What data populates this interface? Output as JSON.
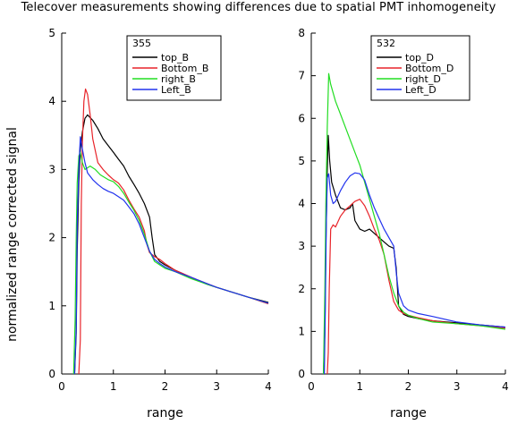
{
  "figure_title": "Telecover measurements showing differences due to spatial PMT inhomogeneity",
  "ylabel": "normalized range corrected signal",
  "chart_data": [
    {
      "type": "line",
      "panel": "left",
      "legend_title": "355",
      "legend_position": "top-right",
      "xlabel": "range",
      "xlim": [
        0,
        4
      ],
      "ylim": [
        0,
        5
      ],
      "xticks": [
        0,
        1,
        2,
        3,
        4
      ],
      "yticks": [
        0,
        1,
        2,
        3,
        4,
        5
      ],
      "grid": false,
      "series": [
        {
          "name": "top_B",
          "color": "#000000",
          "points": [
            [
              0.25,
              0
            ],
            [
              0.28,
              0.6
            ],
            [
              0.3,
              1.8
            ],
            [
              0.33,
              2.8
            ],
            [
              0.36,
              3.3
            ],
            [
              0.4,
              3.55
            ],
            [
              0.45,
              3.75
            ],
            [
              0.5,
              3.8
            ],
            [
              0.6,
              3.72
            ],
            [
              0.7,
              3.6
            ],
            [
              0.8,
              3.45
            ],
            [
              0.9,
              3.35
            ],
            [
              1.0,
              3.25
            ],
            [
              1.1,
              3.15
            ],
            [
              1.2,
              3.05
            ],
            [
              1.3,
              2.9
            ],
            [
              1.4,
              2.78
            ],
            [
              1.5,
              2.65
            ],
            [
              1.6,
              2.5
            ],
            [
              1.7,
              2.3
            ],
            [
              1.75,
              2.0
            ],
            [
              1.8,
              1.75
            ],
            [
              1.9,
              1.65
            ],
            [
              2.0,
              1.6
            ],
            [
              2.2,
              1.52
            ],
            [
              2.5,
              1.42
            ],
            [
              2.8,
              1.32
            ],
            [
              3.0,
              1.27
            ],
            [
              3.3,
              1.2
            ],
            [
              3.6,
              1.13
            ],
            [
              4.0,
              1.05
            ]
          ]
        },
        {
          "name": "Bottom_B",
          "color": "#e8242a",
          "points": [
            [
              0.33,
              0
            ],
            [
              0.36,
              0.5
            ],
            [
              0.38,
              2.5
            ],
            [
              0.4,
              3.4
            ],
            [
              0.43,
              4.0
            ],
            [
              0.46,
              4.18
            ],
            [
              0.5,
              4.1
            ],
            [
              0.55,
              3.8
            ],
            [
              0.6,
              3.45
            ],
            [
              0.7,
              3.1
            ],
            [
              0.8,
              3.0
            ],
            [
              0.9,
              2.92
            ],
            [
              1.0,
              2.85
            ],
            [
              1.1,
              2.8
            ],
            [
              1.2,
              2.7
            ],
            [
              1.3,
              2.55
            ],
            [
              1.4,
              2.42
            ],
            [
              1.5,
              2.3
            ],
            [
              1.6,
              2.1
            ],
            [
              1.65,
              1.9
            ],
            [
              1.7,
              1.78
            ],
            [
              1.8,
              1.72
            ],
            [
              1.9,
              1.68
            ],
            [
              2.0,
              1.62
            ],
            [
              2.2,
              1.52
            ],
            [
              2.5,
              1.42
            ],
            [
              2.8,
              1.33
            ],
            [
              3.0,
              1.27
            ],
            [
              3.3,
              1.2
            ],
            [
              3.6,
              1.13
            ],
            [
              4.0,
              1.03
            ]
          ]
        },
        {
          "name": "right_B",
          "color": "#22dd22",
          "points": [
            [
              0.23,
              0
            ],
            [
              0.26,
              0.8
            ],
            [
              0.28,
              2.0
            ],
            [
              0.3,
              2.8
            ],
            [
              0.33,
              3.2
            ],
            [
              0.36,
              3.25
            ],
            [
              0.4,
              3.1
            ],
            [
              0.45,
              3.0
            ],
            [
              0.55,
              3.05
            ],
            [
              0.65,
              3.0
            ],
            [
              0.75,
              2.92
            ],
            [
              0.9,
              2.85
            ],
            [
              1.0,
              2.82
            ],
            [
              1.1,
              2.75
            ],
            [
              1.2,
              2.65
            ],
            [
              1.3,
              2.52
            ],
            [
              1.4,
              2.4
            ],
            [
              1.5,
              2.25
            ],
            [
              1.6,
              2.05
            ],
            [
              1.7,
              1.8
            ],
            [
              1.8,
              1.65
            ],
            [
              1.9,
              1.6
            ],
            [
              2.0,
              1.55
            ],
            [
              2.2,
              1.5
            ],
            [
              2.5,
              1.4
            ],
            [
              2.8,
              1.32
            ],
            [
              3.0,
              1.27
            ],
            [
              3.3,
              1.2
            ],
            [
              3.6,
              1.13
            ],
            [
              4.0,
              1.04
            ]
          ]
        },
        {
          "name": "Left_B",
          "color": "#2233ee",
          "points": [
            [
              0.25,
              0
            ],
            [
              0.28,
              0.7
            ],
            [
              0.3,
              2.2
            ],
            [
              0.33,
              3.0
            ],
            [
              0.36,
              3.48
            ],
            [
              0.4,
              3.3
            ],
            [
              0.45,
              3.1
            ],
            [
              0.5,
              2.95
            ],
            [
              0.6,
              2.85
            ],
            [
              0.7,
              2.78
            ],
            [
              0.8,
              2.72
            ],
            [
              0.9,
              2.68
            ],
            [
              1.0,
              2.65
            ],
            [
              1.1,
              2.6
            ],
            [
              1.2,
              2.55
            ],
            [
              1.3,
              2.45
            ],
            [
              1.4,
              2.35
            ],
            [
              1.5,
              2.2
            ],
            [
              1.6,
              2.0
            ],
            [
              1.7,
              1.8
            ],
            [
              1.8,
              1.68
            ],
            [
              1.9,
              1.62
            ],
            [
              2.0,
              1.57
            ],
            [
              2.2,
              1.5
            ],
            [
              2.5,
              1.42
            ],
            [
              2.8,
              1.33
            ],
            [
              3.0,
              1.27
            ],
            [
              3.3,
              1.2
            ],
            [
              3.6,
              1.13
            ],
            [
              4.0,
              1.04
            ]
          ]
        }
      ]
    },
    {
      "type": "line",
      "panel": "right",
      "legend_title": "532",
      "legend_position": "top-right",
      "xlabel": "range",
      "xlim": [
        0,
        4
      ],
      "ylim": [
        0,
        8
      ],
      "xticks": [
        0,
        1,
        2,
        3,
        4
      ],
      "yticks": [
        0,
        1,
        2,
        3,
        4,
        5,
        6,
        7,
        8
      ],
      "grid": false,
      "series": [
        {
          "name": "top_D",
          "color": "#000000",
          "points": [
            [
              0.25,
              0
            ],
            [
              0.28,
              1.0
            ],
            [
              0.3,
              3.0
            ],
            [
              0.33,
              4.8
            ],
            [
              0.35,
              5.6
            ],
            [
              0.38,
              5.0
            ],
            [
              0.42,
              4.5
            ],
            [
              0.5,
              4.2
            ],
            [
              0.6,
              3.9
            ],
            [
              0.7,
              3.85
            ],
            [
              0.8,
              3.9
            ],
            [
              0.85,
              4.0
            ],
            [
              0.9,
              3.6
            ],
            [
              1.0,
              3.4
            ],
            [
              1.1,
              3.35
            ],
            [
              1.2,
              3.4
            ],
            [
              1.3,
              3.3
            ],
            [
              1.4,
              3.2
            ],
            [
              1.5,
              3.1
            ],
            [
              1.6,
              3.0
            ],
            [
              1.7,
              2.95
            ],
            [
              1.75,
              2.5
            ],
            [
              1.8,
              1.6
            ],
            [
              1.9,
              1.4
            ],
            [
              2.0,
              1.35
            ],
            [
              2.2,
              1.3
            ],
            [
              2.5,
              1.25
            ],
            [
              3.0,
              1.2
            ],
            [
              3.5,
              1.15
            ],
            [
              4.0,
              1.1
            ]
          ]
        },
        {
          "name": "Bottom_D",
          "color": "#e8242a",
          "points": [
            [
              0.33,
              0
            ],
            [
              0.35,
              0.5
            ],
            [
              0.37,
              2.0
            ],
            [
              0.4,
              3.4
            ],
            [
              0.45,
              3.5
            ],
            [
              0.5,
              3.45
            ],
            [
              0.6,
              3.7
            ],
            [
              0.7,
              3.85
            ],
            [
              0.8,
              3.95
            ],
            [
              0.9,
              4.05
            ],
            [
              1.0,
              4.1
            ],
            [
              1.1,
              3.95
            ],
            [
              1.2,
              3.7
            ],
            [
              1.3,
              3.4
            ],
            [
              1.4,
              3.15
            ],
            [
              1.5,
              2.8
            ],
            [
              1.6,
              2.2
            ],
            [
              1.7,
              1.7
            ],
            [
              1.8,
              1.5
            ],
            [
              1.9,
              1.42
            ],
            [
              2.0,
              1.38
            ],
            [
              2.2,
              1.32
            ],
            [
              2.5,
              1.25
            ],
            [
              3.0,
              1.18
            ],
            [
              3.5,
              1.13
            ],
            [
              4.0,
              1.08
            ]
          ]
        },
        {
          "name": "right_D",
          "color": "#22dd22",
          "points": [
            [
              0.25,
              0
            ],
            [
              0.28,
              2.0
            ],
            [
              0.3,
              4.0
            ],
            [
              0.33,
              5.8
            ],
            [
              0.36,
              7.05
            ],
            [
              0.4,
              6.8
            ],
            [
              0.5,
              6.4
            ],
            [
              0.6,
              6.1
            ],
            [
              0.7,
              5.8
            ],
            [
              0.8,
              5.5
            ],
            [
              0.9,
              5.2
            ],
            [
              1.0,
              4.9
            ],
            [
              1.1,
              4.5
            ],
            [
              1.2,
              4.1
            ],
            [
              1.3,
              3.7
            ],
            [
              1.4,
              3.3
            ],
            [
              1.5,
              2.8
            ],
            [
              1.6,
              2.3
            ],
            [
              1.7,
              1.9
            ],
            [
              1.8,
              1.6
            ],
            [
              1.9,
              1.45
            ],
            [
              2.0,
              1.38
            ],
            [
              2.2,
              1.3
            ],
            [
              2.5,
              1.22
            ],
            [
              3.0,
              1.18
            ],
            [
              3.5,
              1.13
            ],
            [
              4.0,
              1.05
            ]
          ]
        },
        {
          "name": "Left_D",
          "color": "#2233ee",
          "points": [
            [
              0.27,
              0
            ],
            [
              0.29,
              1.5
            ],
            [
              0.31,
              3.5
            ],
            [
              0.33,
              4.6
            ],
            [
              0.36,
              4.7
            ],
            [
              0.4,
              4.2
            ],
            [
              0.45,
              4.0
            ],
            [
              0.5,
              4.05
            ],
            [
              0.6,
              4.3
            ],
            [
              0.7,
              4.5
            ],
            [
              0.8,
              4.65
            ],
            [
              0.9,
              4.72
            ],
            [
              1.0,
              4.7
            ],
            [
              1.1,
              4.55
            ],
            [
              1.2,
              4.2
            ],
            [
              1.3,
              3.9
            ],
            [
              1.4,
              3.65
            ],
            [
              1.5,
              3.4
            ],
            [
              1.6,
              3.2
            ],
            [
              1.7,
              3.0
            ],
            [
              1.75,
              2.4
            ],
            [
              1.8,
              1.9
            ],
            [
              1.9,
              1.6
            ],
            [
              2.0,
              1.5
            ],
            [
              2.2,
              1.42
            ],
            [
              2.5,
              1.35
            ],
            [
              3.0,
              1.22
            ],
            [
              3.5,
              1.15
            ],
            [
              4.0,
              1.1
            ]
          ]
        }
      ]
    }
  ]
}
